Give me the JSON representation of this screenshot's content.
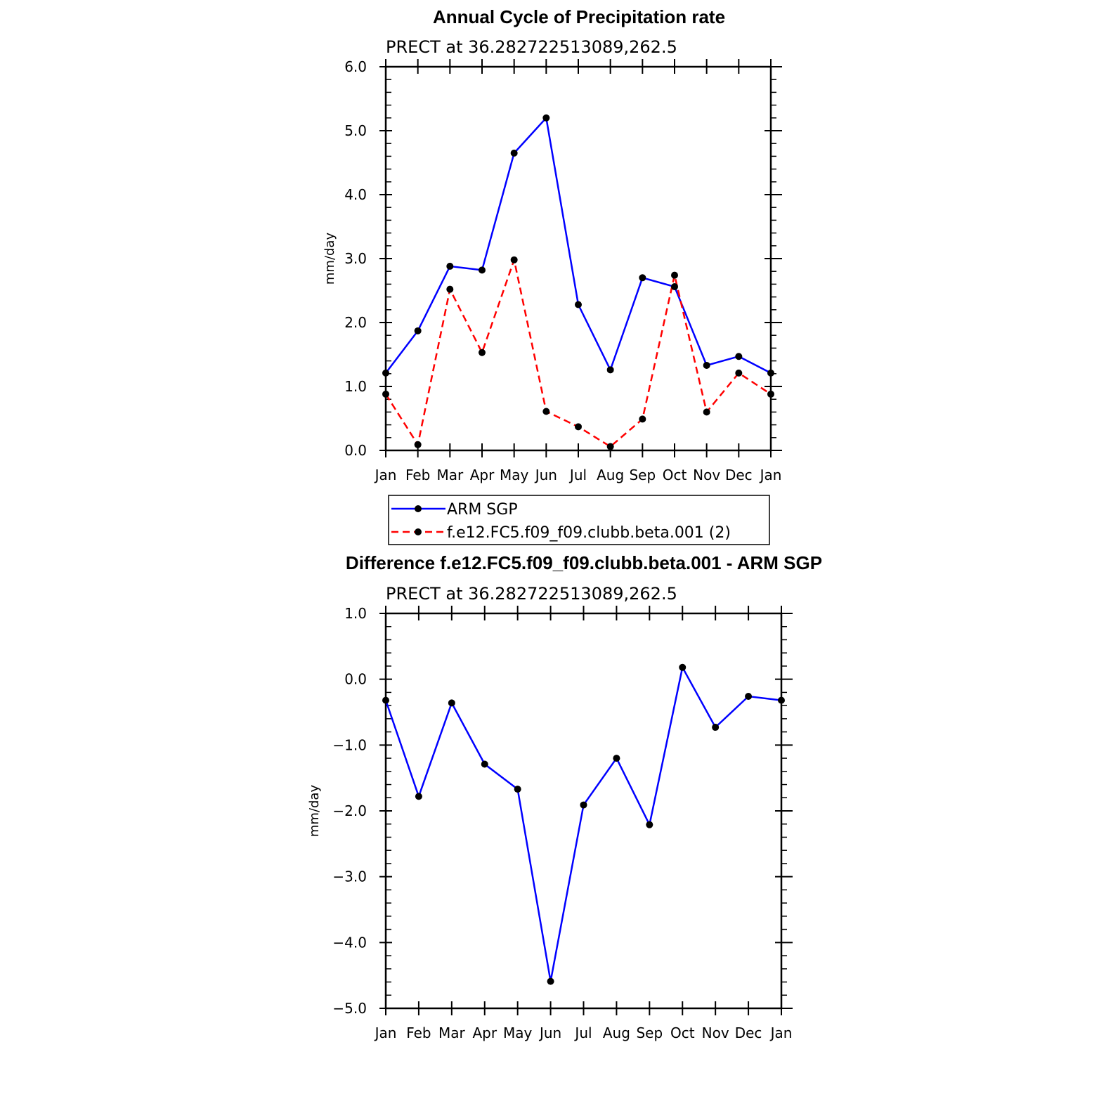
{
  "chart_data": [
    {
      "type": "line",
      "title": "Annual Cycle of Precipitation rate",
      "subtitle": "PRECT at 36.282722513089,262.5",
      "xlabel": "",
      "ylabel": "mm/day",
      "categories": [
        "Jan",
        "Feb",
        "Mar",
        "Apr",
        "May",
        "Jun",
        "Jul",
        "Aug",
        "Sep",
        "Oct",
        "Nov",
        "Dec",
        "Jan"
      ],
      "ylim": [
        0,
        6
      ],
      "yticks": [
        "0.0",
        "1.0",
        "2.0",
        "3.0",
        "4.0",
        "5.0",
        "6.0"
      ],
      "grid": false,
      "legend": "below",
      "series": [
        {
          "name": "ARM SGP",
          "color": "#0000ff",
          "dash": "solid",
          "values": [
            1.21,
            1.87,
            2.88,
            2.82,
            4.65,
            5.2,
            2.28,
            1.26,
            2.7,
            2.56,
            1.33,
            1.47,
            1.21
          ]
        },
        {
          "name": "f.e12.FC5.f09_f09.clubb.beta.001 (2)",
          "color": "#ff0000",
          "dash": "dashed",
          "values": [
            0.88,
            0.09,
            2.52,
            1.53,
            2.98,
            0.61,
            0.37,
            0.06,
            0.49,
            2.74,
            0.6,
            1.21,
            0.88
          ]
        }
      ]
    },
    {
      "type": "line",
      "title": "Difference f.e12.FC5.f09_f09.clubb.beta.001 - ARM SGP",
      "subtitle": "PRECT at 36.282722513089,262.5",
      "xlabel": "",
      "ylabel": "mm/day",
      "categories": [
        "Jan",
        "Feb",
        "Mar",
        "Apr",
        "May",
        "Jun",
        "Jul",
        "Aug",
        "Sep",
        "Oct",
        "Nov",
        "Dec",
        "Jan"
      ],
      "ylim": [
        -5,
        1
      ],
      "yticks": [
        "−5.0",
        "−4.0",
        "−3.0",
        "−2.0",
        "−1.0",
        "0.0",
        "1.0"
      ],
      "grid": false,
      "series": [
        {
          "color": "#0000ff",
          "dash": "solid",
          "values": [
            -0.32,
            -1.78,
            -0.36,
            -1.29,
            -1.67,
            -4.59,
            -1.91,
            -1.2,
            -2.21,
            0.18,
            -0.73,
            -0.26,
            -0.32
          ]
        }
      ]
    }
  ]
}
